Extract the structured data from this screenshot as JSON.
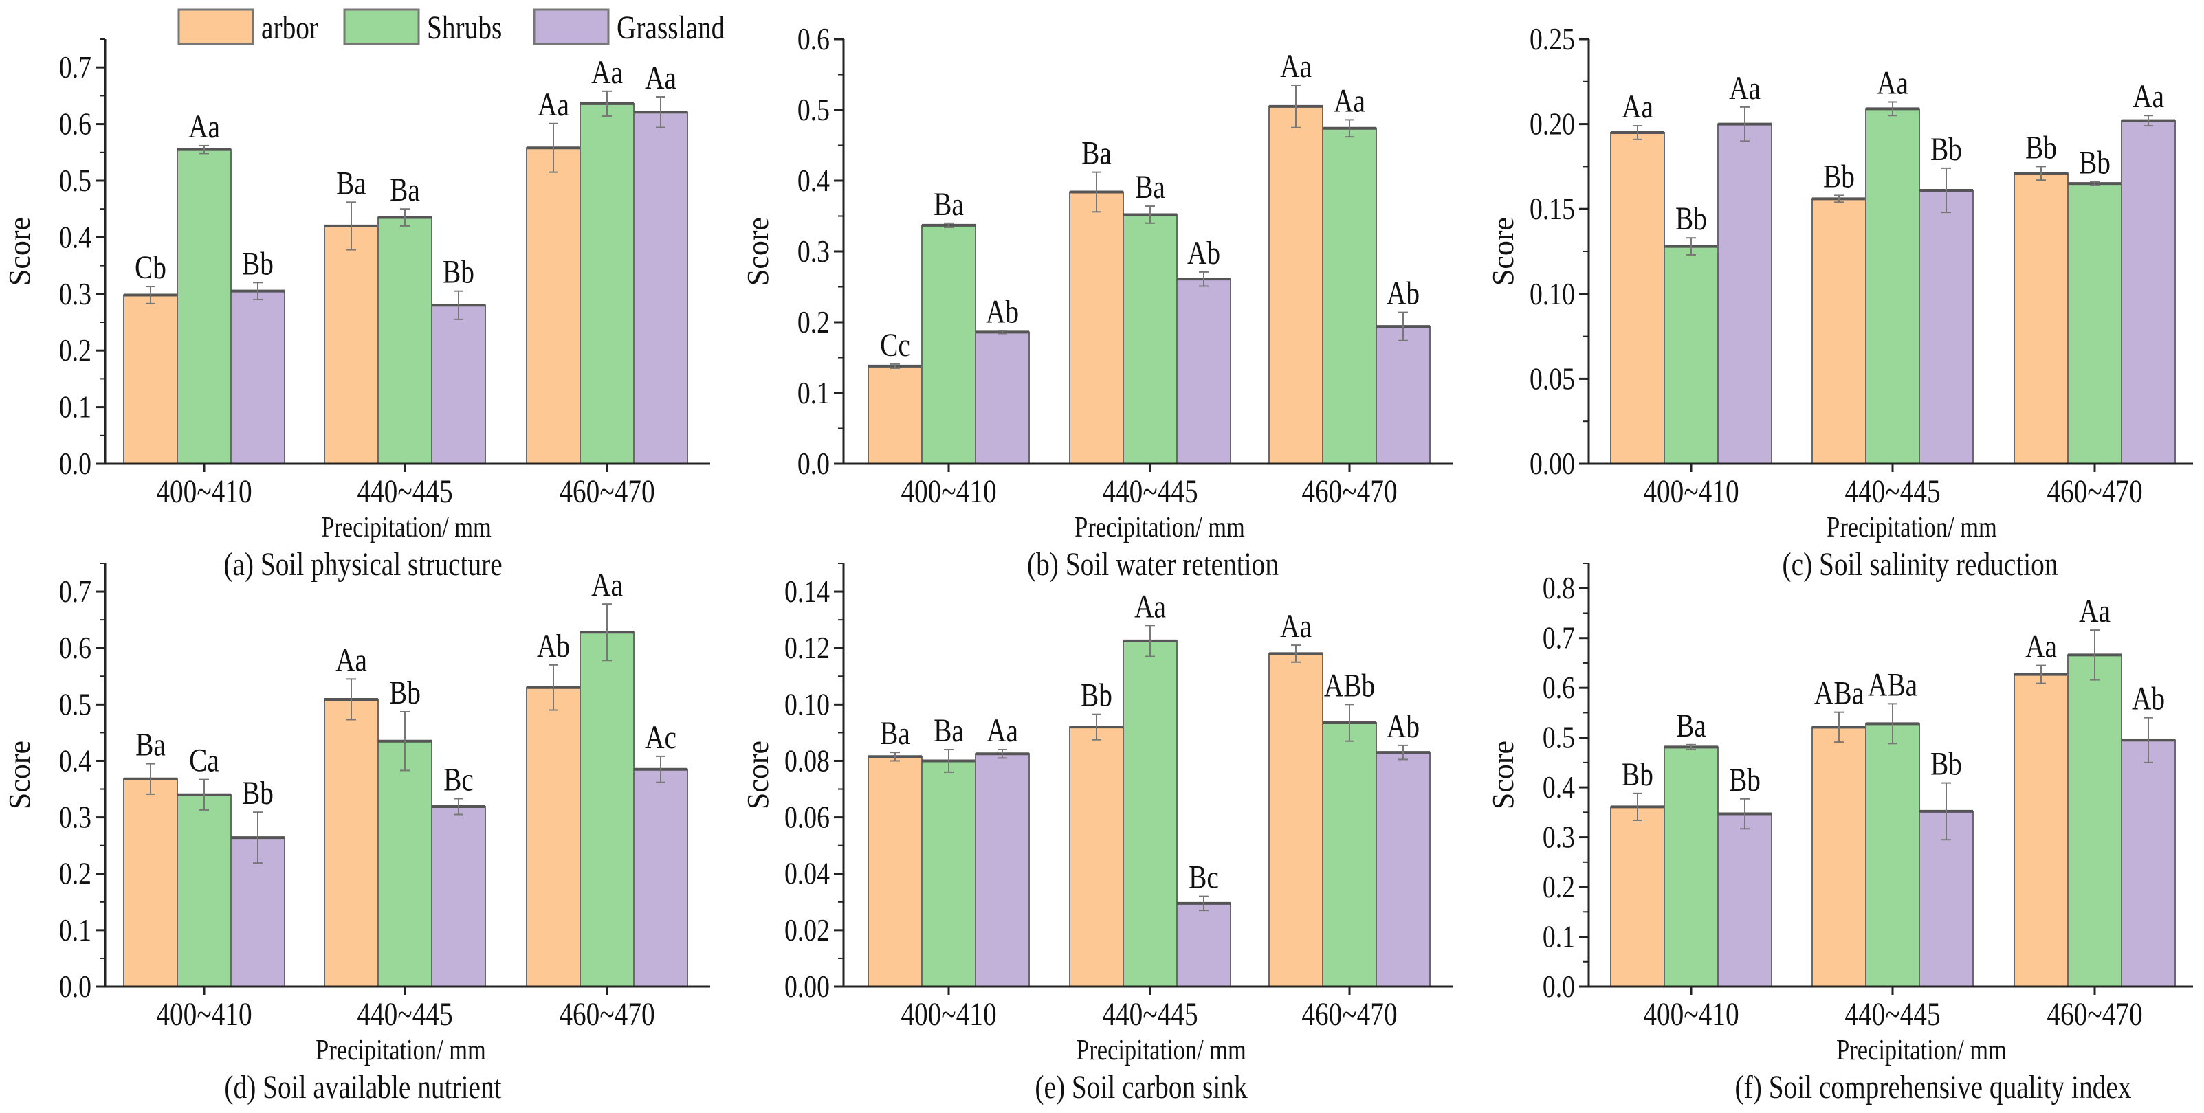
{
  "legend": [
    {
      "name": "arbor",
      "color": "#FDC893"
    },
    {
      "name": "Shrubs",
      "color": "#9AD89A"
    },
    {
      "name": "Grassland",
      "color": "#C2B2DA"
    }
  ],
  "chart_data": [
    {
      "type": "bar",
      "caption": "(a) Soil physical structure",
      "xlabel": "Precipitation/ mm",
      "ylabel": "Score",
      "categories": [
        "400~410",
        "440~445",
        "460~470"
      ],
      "ylim": [
        0,
        0.75
      ],
      "yticks": [
        "0.0",
        "0.1",
        "0.2",
        "0.3",
        "0.4",
        "0.5",
        "0.6",
        "0.7"
      ],
      "ytick_step": 0.1,
      "series": [
        {
          "name": "arbor",
          "values": [
            0.298,
            0.42,
            0.558
          ],
          "errors": [
            0.015,
            0.042,
            0.043
          ],
          "letters": [
            "Cb",
            "Ba",
            "Aa"
          ]
        },
        {
          "name": "Shrubs",
          "values": [
            0.555,
            0.435,
            0.636
          ],
          "errors": [
            0.007,
            0.015,
            0.022
          ],
          "letters": [
            "Aa",
            "Ba",
            "Aa"
          ]
        },
        {
          "name": "Grassland",
          "values": [
            0.305,
            0.28,
            0.621
          ],
          "errors": [
            0.015,
            0.025,
            0.027
          ],
          "letters": [
            "Bb",
            "Bb",
            "Aa"
          ]
        }
      ]
    },
    {
      "type": "bar",
      "caption": "(b) Soil water retention",
      "xlabel": "Precipitation/ mm",
      "ylabel": "Score",
      "categories": [
        "400~410",
        "440~445",
        "460~470"
      ],
      "ylim": [
        0,
        0.6
      ],
      "yticks": [
        "0.0",
        "0.1",
        "0.2",
        "0.3",
        "0.4",
        "0.5",
        "0.6"
      ],
      "ytick_step": 0.1,
      "series": [
        {
          "name": "arbor",
          "values": [
            0.138,
            0.384,
            0.505
          ],
          "errors": [
            0.003,
            0.028,
            0.03
          ],
          "letters": [
            "Cc",
            "Ba",
            "Aa"
          ]
        },
        {
          "name": "Shrubs",
          "values": [
            0.337,
            0.352,
            0.474
          ],
          "errors": [
            0.003,
            0.012,
            0.012
          ],
          "letters": [
            "Ba",
            "Ba",
            "Aa"
          ]
        },
        {
          "name": "Grassland",
          "values": [
            0.186,
            0.261,
            0.194
          ],
          "errors": [
            0.002,
            0.01,
            0.02
          ],
          "letters": [
            "Ab",
            "Ab",
            "Ab"
          ]
        }
      ]
    },
    {
      "type": "bar",
      "caption": "(c) Soil salinity reduction",
      "xlabel": "Precipitation/ mm",
      "ylabel": "Score",
      "categories": [
        "400~410",
        "440~445",
        "460~470"
      ],
      "ylim": [
        0,
        0.25
      ],
      "yticks": [
        "0.00",
        "0.05",
        "0.10",
        "0.15",
        "0.20",
        "0.25"
      ],
      "ytick_step": 0.05,
      "series": [
        {
          "name": "arbor",
          "values": [
            0.195,
            0.156,
            0.171
          ],
          "errors": [
            0.004,
            0.002,
            0.004
          ],
          "letters": [
            "Aa",
            "Bb",
            "Bb"
          ]
        },
        {
          "name": "Shrubs",
          "values": [
            0.128,
            0.209,
            0.165
          ],
          "errors": [
            0.005,
            0.004,
            0.001
          ],
          "letters": [
            "Bb",
            "Aa",
            "Bb"
          ]
        },
        {
          "name": "Grassland",
          "values": [
            0.2,
            0.161,
            0.202
          ],
          "errors": [
            0.01,
            0.013,
            0.003
          ],
          "letters": [
            "Aa",
            "Bb",
            "Aa"
          ]
        }
      ]
    },
    {
      "type": "bar",
      "caption": "(d) Soil available nutrient",
      "xlabel": "Precipitation/ mm",
      "ylabel": "Score",
      "categories": [
        "400~410",
        "440~445",
        "460~470"
      ],
      "ylim": [
        0,
        0.75
      ],
      "yticks": [
        "0.0",
        "0.1",
        "0.2",
        "0.3",
        "0.4",
        "0.5",
        "0.6",
        "0.7"
      ],
      "ytick_step": 0.1,
      "series": [
        {
          "name": "arbor",
          "values": [
            0.368,
            0.509,
            0.53
          ],
          "errors": [
            0.027,
            0.036,
            0.04
          ],
          "letters": [
            "Ba",
            "Aa",
            "Ab"
          ]
        },
        {
          "name": "Shrubs",
          "values": [
            0.34,
            0.435,
            0.628
          ],
          "errors": [
            0.027,
            0.052,
            0.05
          ],
          "letters": [
            "Ca",
            "Bb",
            "Aa"
          ]
        },
        {
          "name": "Grassland",
          "values": [
            0.264,
            0.319,
            0.385
          ],
          "errors": [
            0.045,
            0.014,
            0.023
          ],
          "letters": [
            "Bb",
            "Bc",
            "Ac"
          ]
        }
      ]
    },
    {
      "type": "bar",
      "caption": "(e) Soil carbon sink",
      "xlabel": "Precipitation/ mm",
      "ylabel": "Score",
      "categories": [
        "400~410",
        "440~445",
        "460~470"
      ],
      "ylim": [
        0,
        0.15
      ],
      "yticks": [
        "0.00",
        "0.02",
        "0.04",
        "0.06",
        "0.08",
        "0.10",
        "0.12",
        "0.14"
      ],
      "ytick_step": 0.02,
      "series": [
        {
          "name": "arbor",
          "values": [
            0.0815,
            0.092,
            0.118
          ],
          "errors": [
            0.0015,
            0.0045,
            0.003
          ],
          "letters": [
            "Ba",
            "Bb",
            "Aa"
          ]
        },
        {
          "name": "Shrubs",
          "values": [
            0.08,
            0.1225,
            0.0935
          ],
          "errors": [
            0.004,
            0.0055,
            0.0065
          ],
          "letters": [
            "Ba",
            "Aa",
            "ABb"
          ]
        },
        {
          "name": "Grassland",
          "values": [
            0.0825,
            0.0295,
            0.083
          ],
          "errors": [
            0.0015,
            0.0025,
            0.0025
          ],
          "letters": [
            "Aa",
            "Bc",
            "Ab"
          ]
        }
      ]
    },
    {
      "type": "bar",
      "caption": "(f) Soil comprehensive quality index",
      "xlabel": "Precipitation/ mm",
      "ylabel": "Score",
      "categories": [
        "400~410",
        "440~445",
        "460~470"
      ],
      "ylim": [
        0,
        0.85
      ],
      "yticks": [
        "0.0",
        "0.1",
        "0.2",
        "0.3",
        "0.4",
        "0.5",
        "0.6",
        "0.7",
        "0.8"
      ],
      "ytick_step": 0.1,
      "series": [
        {
          "name": "arbor",
          "values": [
            0.361,
            0.521,
            0.627
          ],
          "errors": [
            0.027,
            0.03,
            0.018
          ],
          "letters": [
            "Bb",
            "ABa",
            "Aa"
          ]
        },
        {
          "name": "Shrubs",
          "values": [
            0.481,
            0.528,
            0.666
          ],
          "errors": [
            0.005,
            0.04,
            0.05
          ],
          "letters": [
            "Ba",
            "ABa",
            "Aa"
          ]
        },
        {
          "name": "Grassland",
          "values": [
            0.347,
            0.352,
            0.495
          ],
          "errors": [
            0.03,
            0.057,
            0.045
          ],
          "letters": [
            "Bb",
            "Bb",
            "Ab"
          ]
        }
      ]
    }
  ]
}
